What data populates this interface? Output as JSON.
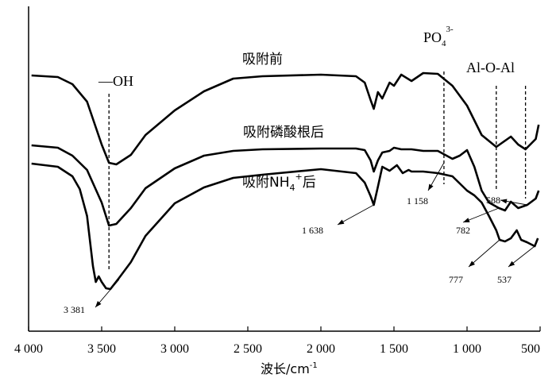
{
  "chart_data": {
    "type": "line",
    "xlabel": "波长/cm",
    "xlabel_sup": "-1",
    "xlim": [
      4000,
      500
    ],
    "x_ticks": [
      4000,
      3500,
      3000,
      2500,
      2000,
      1500,
      1000,
      500
    ],
    "x_tick_labels": [
      "4 000",
      "3 500",
      "3 000",
      "2 500",
      "2 000",
      "1 500",
      "1 000",
      "500"
    ],
    "series": [
      {
        "name": "吸附前",
        "name_parts": {
          "main": "吸附前",
          "sub": "",
          "sup": "",
          "tail": ""
        },
        "points": [
          [
            3980,
            95
          ],
          [
            3800,
            97
          ],
          [
            3700,
            106
          ],
          [
            3600,
            128
          ],
          [
            3500,
            182
          ],
          [
            3450,
            205
          ],
          [
            3400,
            207
          ],
          [
            3300,
            195
          ],
          [
            3200,
            170
          ],
          [
            3000,
            139
          ],
          [
            2800,
            115
          ],
          [
            2600,
            99
          ],
          [
            2400,
            96
          ],
          [
            2000,
            94
          ],
          [
            1760,
            96
          ],
          [
            1700,
            104
          ],
          [
            1660,
            126
          ],
          [
            1638,
            137
          ],
          [
            1610,
            116
          ],
          [
            1580,
            124
          ],
          [
            1530,
            104
          ],
          [
            1500,
            108
          ],
          [
            1450,
            94
          ],
          [
            1380,
            102
          ],
          [
            1300,
            92
          ],
          [
            1200,
            93
          ],
          [
            1100,
            108
          ],
          [
            1000,
            133
          ],
          [
            900,
            170
          ],
          [
            800,
            185
          ],
          [
            700,
            172
          ],
          [
            650,
            182
          ],
          [
            600,
            188
          ],
          [
            530,
            175
          ],
          [
            510,
            157
          ]
        ]
      },
      {
        "name": "吸附磷酸根后",
        "name_parts": {
          "main": "吸附磷酸根后",
          "sub": "",
          "sup": "",
          "tail": ""
        },
        "points": [
          [
            3980,
            183
          ],
          [
            3800,
            186
          ],
          [
            3700,
            196
          ],
          [
            3600,
            214
          ],
          [
            3500,
            255
          ],
          [
            3450,
            284
          ],
          [
            3400,
            282
          ],
          [
            3300,
            262
          ],
          [
            3200,
            237
          ],
          [
            3000,
            212
          ],
          [
            2800,
            196
          ],
          [
            2600,
            190
          ],
          [
            2400,
            188
          ],
          [
            2000,
            187
          ],
          [
            1760,
            187
          ],
          [
            1700,
            189
          ],
          [
            1660,
            202
          ],
          [
            1638,
            216
          ],
          [
            1610,
            202
          ],
          [
            1580,
            192
          ],
          [
            1530,
            190
          ],
          [
            1500,
            186
          ],
          [
            1450,
            188
          ],
          [
            1380,
            188
          ],
          [
            1300,
            190
          ],
          [
            1200,
            190
          ],
          [
            1150,
            195
          ],
          [
            1100,
            200
          ],
          [
            1050,
            196
          ],
          [
            1000,
            189
          ],
          [
            950,
            210
          ],
          [
            900,
            240
          ],
          [
            850,
            255
          ],
          [
            782,
            262
          ],
          [
            740,
            265
          ],
          [
            700,
            254
          ],
          [
            650,
            262
          ],
          [
            588,
            258
          ],
          [
            530,
            250
          ],
          [
            510,
            240
          ]
        ]
      },
      {
        "name": "吸附NH4+后",
        "name_parts": {
          "main": "吸附NH",
          "sub": "4",
          "sup": "+",
          "tail": "后"
        },
        "points": [
          [
            3980,
            206
          ],
          [
            3800,
            210
          ],
          [
            3700,
            222
          ],
          [
            3650,
            238
          ],
          [
            3600,
            272
          ],
          [
            3560,
            335
          ],
          [
            3540,
            355
          ],
          [
            3520,
            348
          ],
          [
            3500,
            355
          ],
          [
            3470,
            363
          ],
          [
            3440,
            364
          ],
          [
            3381,
            350
          ],
          [
            3300,
            330
          ],
          [
            3200,
            297
          ],
          [
            3000,
            256
          ],
          [
            2800,
            236
          ],
          [
            2600,
            224
          ],
          [
            2400,
            220
          ],
          [
            2000,
            213
          ],
          [
            1760,
            218
          ],
          [
            1700,
            230
          ],
          [
            1660,
            247
          ],
          [
            1638,
            258
          ],
          [
            1610,
            235
          ],
          [
            1580,
            210
          ],
          [
            1530,
            215
          ],
          [
            1480,
            208
          ],
          [
            1440,
            218
          ],
          [
            1400,
            214
          ],
          [
            1380,
            216
          ],
          [
            1300,
            216
          ],
          [
            1200,
            218
          ],
          [
            1100,
            222
          ],
          [
            1000,
            240
          ],
          [
            950,
            246
          ],
          [
            900,
            255
          ],
          [
            850,
            272
          ],
          [
            800,
            290
          ],
          [
            777,
            302
          ],
          [
            740,
            304
          ],
          [
            700,
            300
          ],
          [
            660,
            290
          ],
          [
            630,
            302
          ],
          [
            590,
            305
          ],
          [
            537,
            310
          ],
          [
            515,
            300
          ]
        ]
      }
    ],
    "annotations": {
      "group_labels": [
        "—OH",
        "PO",
        "Al-O-Al"
      ],
      "po_sub": "4",
      "po_sup": "3-",
      "dashed_refs": [
        3450,
        1158,
        800,
        600
      ],
      "peak_labels": [
        {
          "text": "3 381",
          "x": 3381
        },
        {
          "text": "1 638",
          "x": 1638
        },
        {
          "text": "1 158",
          "x": 1158
        },
        {
          "text": "782",
          "x": 782
        },
        {
          "text": "588",
          "x": 588
        },
        {
          "text": "777",
          "x": 777
        },
        {
          "text": "537",
          "x": 537
        }
      ]
    },
    "grid": false,
    "legend": "none (inline labels)",
    "colors": {
      "line": "#000000",
      "background": "#ffffff"
    }
  }
}
